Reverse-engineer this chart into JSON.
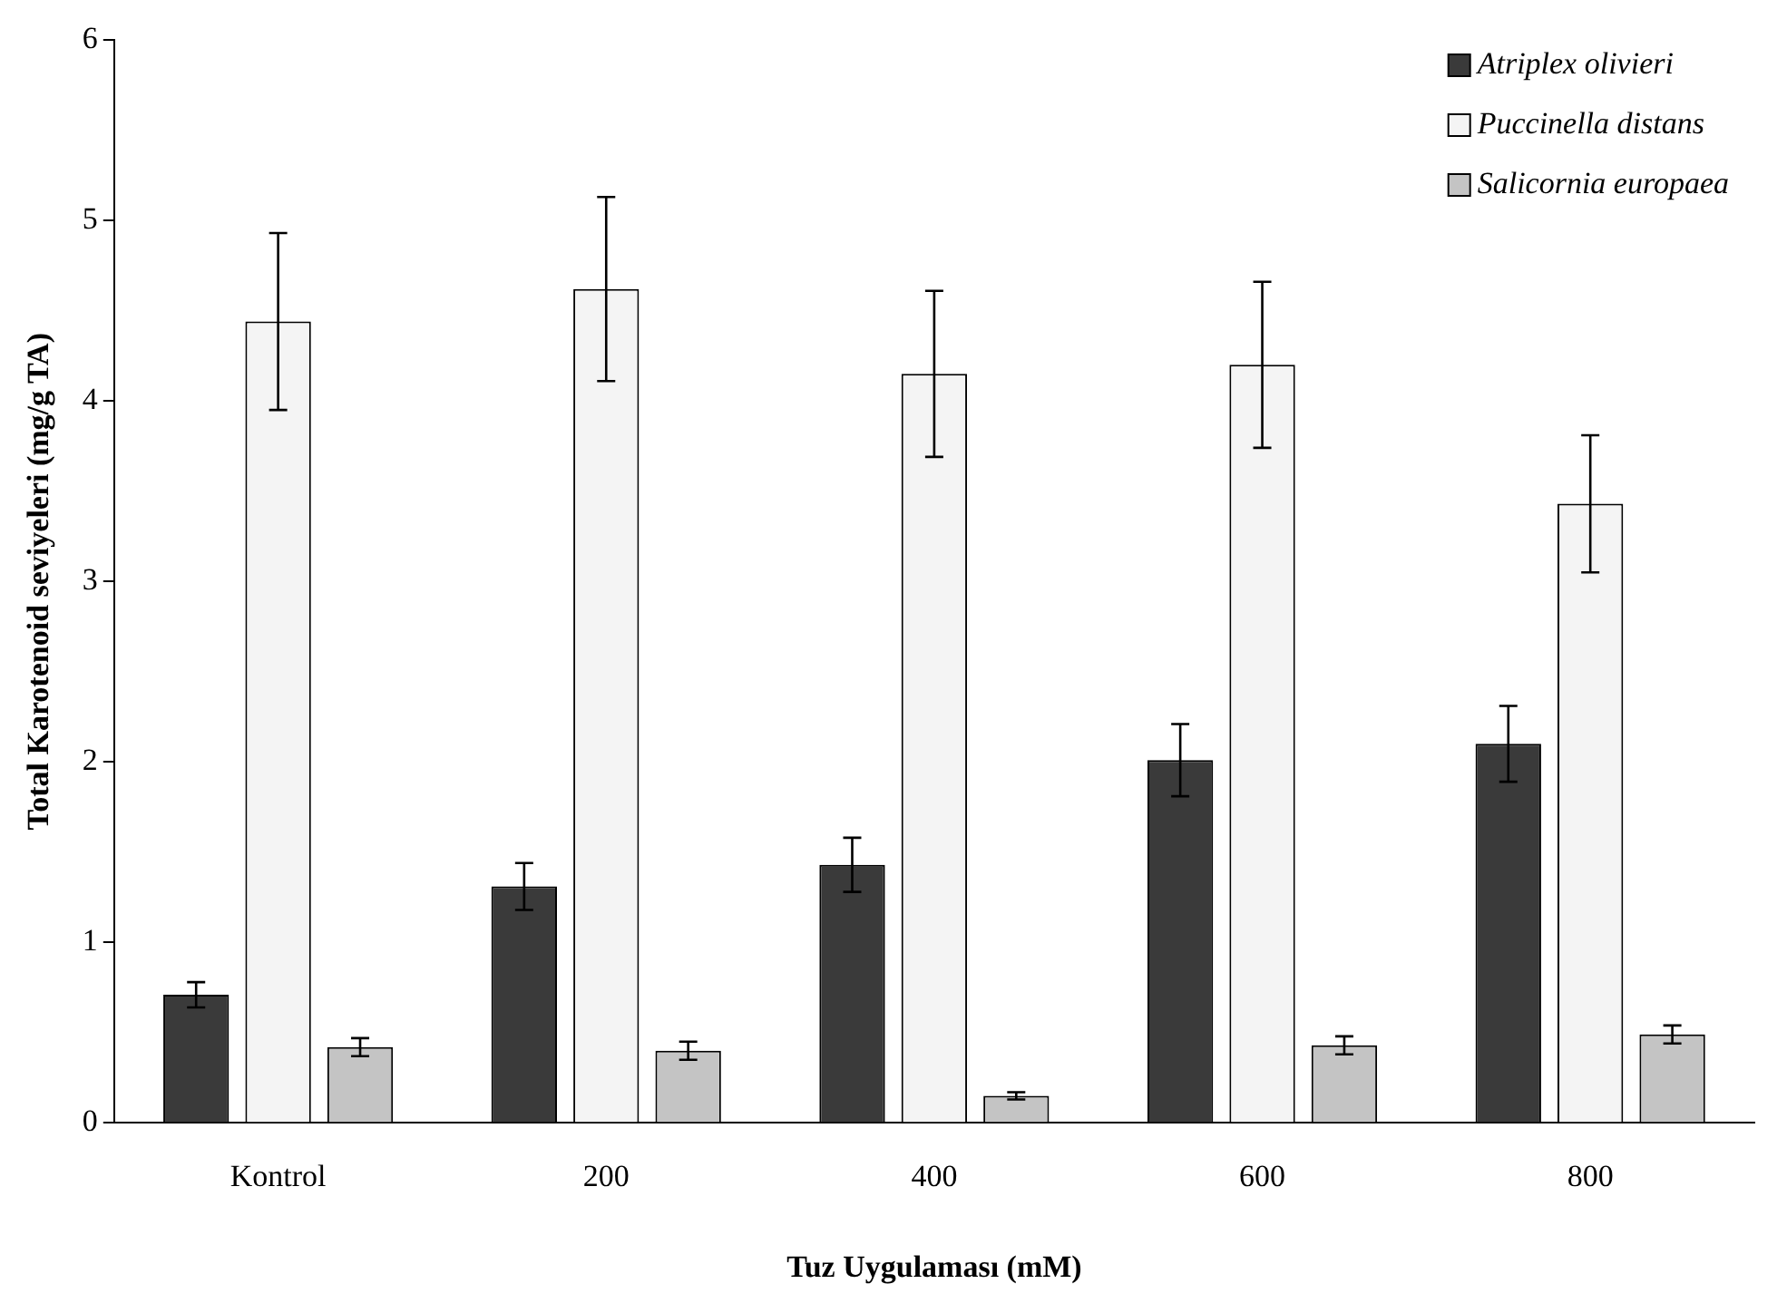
{
  "chart_data": {
    "type": "bar",
    "xlabel": "Tuz Uygulaması (mM)",
    "ylabel": "Total Karotenoid seviyeleri (mg/g TA)",
    "categories": [
      "Kontrol",
      "200",
      "400",
      "600",
      "800"
    ],
    "series": [
      {
        "name": "Atriplex olivieri",
        "color": "#3a3a3a",
        "values": [
          0.71,
          1.31,
          1.43,
          2.01,
          2.1
        ],
        "errors": [
          0.07,
          0.13,
          0.15,
          0.2,
          0.21
        ]
      },
      {
        "name": "Puccinella distans",
        "color": "#f4f4f4",
        "values": [
          4.44,
          4.62,
          4.15,
          4.2,
          3.43
        ],
        "errors": [
          0.49,
          0.51,
          0.46,
          0.46,
          0.38
        ]
      },
      {
        "name": "Salicornia europaea",
        "color": "#c4c4c4",
        "values": [
          0.42,
          0.4,
          0.15,
          0.43,
          0.49
        ],
        "errors": [
          0.05,
          0.05,
          0.02,
          0.05,
          0.05
        ]
      }
    ],
    "ylim": [
      0,
      6
    ],
    "yticks": [
      0,
      1,
      2,
      3,
      4,
      5,
      6
    ],
    "grid": false,
    "legend": "top right"
  }
}
